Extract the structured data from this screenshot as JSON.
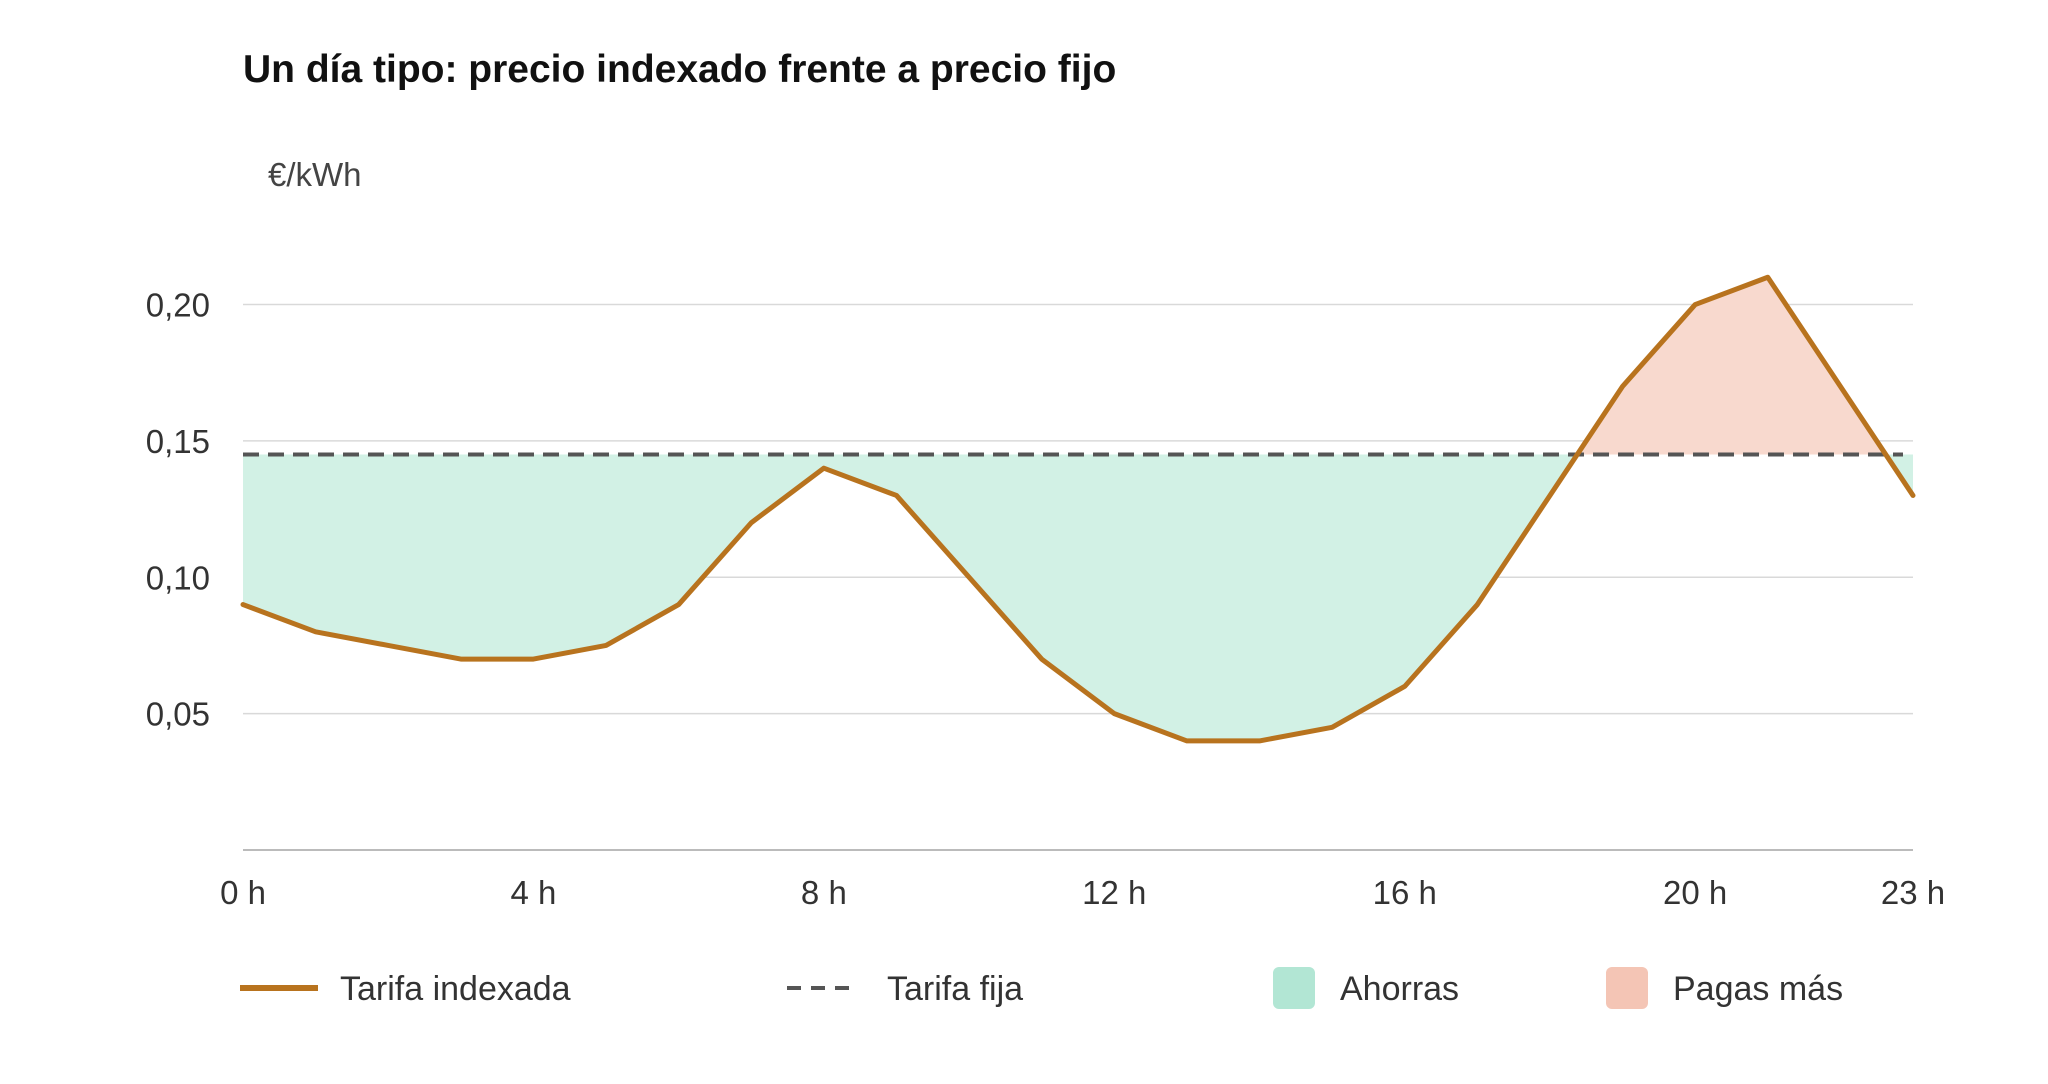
{
  "chart_data": {
    "type": "line",
    "title": "Un día tipo: precio indexado frente a precio fijo",
    "ylabel": "€/kWh",
    "xlabel": "",
    "x": [
      0,
      1,
      2,
      3,
      4,
      5,
      6,
      7,
      8,
      9,
      10,
      11,
      12,
      13,
      14,
      15,
      16,
      17,
      18,
      19,
      20,
      21,
      22,
      23
    ],
    "xlim": [
      0,
      23
    ],
    "ylim": [
      0,
      0.22
    ],
    "x_ticks": [
      0,
      4,
      8,
      12,
      16,
      20,
      23
    ],
    "x_tick_labels": [
      "0 h",
      "4 h",
      "8 h",
      "12 h",
      "16 h",
      "20 h",
      "23 h"
    ],
    "y_ticks": [
      0.05,
      0.1,
      0.15,
      0.2
    ],
    "y_tick_labels": [
      "0,05",
      "0,10",
      "0,15",
      "0,20"
    ],
    "grid": true,
    "legend_position": "bottom",
    "series": [
      {
        "name": "Tarifa indexada",
        "style": "solid",
        "color": "#B8731E",
        "values": [
          0.09,
          0.08,
          0.075,
          0.07,
          0.07,
          0.075,
          0.09,
          0.12,
          0.14,
          0.13,
          0.1,
          0.07,
          0.05,
          0.04,
          0.04,
          0.045,
          0.06,
          0.09,
          0.13,
          0.17,
          0.2,
          0.21,
          0.17,
          0.13
        ]
      },
      {
        "name": "Tarifa fija",
        "style": "dashed",
        "color": "#555555",
        "value": 0.145
      }
    ],
    "areas": [
      {
        "name": "Ahorras",
        "color": "#B2E6D4",
        "fill": "#D2F1E5",
        "condition": "indexed_below_fixed"
      },
      {
        "name": "Pagas más",
        "color": "#F4C5B5",
        "fill": "#F8D9CE",
        "condition": "indexed_above_fixed"
      }
    ]
  }
}
